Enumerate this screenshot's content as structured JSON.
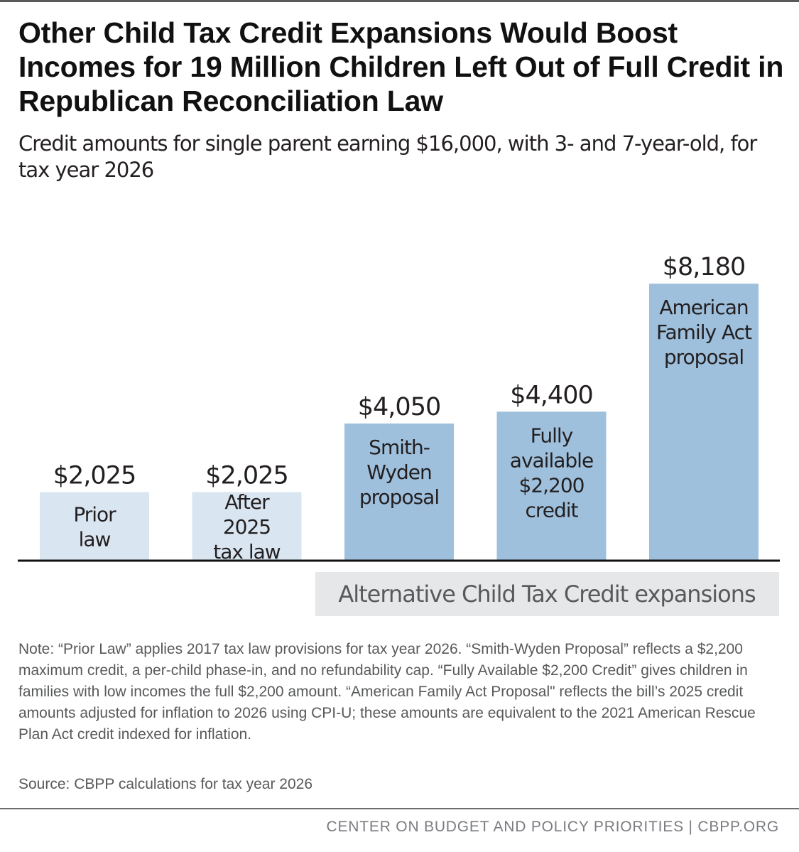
{
  "title": "Other Child Tax Credit Expansions Would Boost Incomes for 19 Million Children Left Out of Full Credit in Republican Reconciliation Law",
  "subtitle": "Credit amounts for single parent earning $16,000, with 3- and 7-year-old, for tax year 2026",
  "note": "Note: “Prior Law” applies 2017 tax law provisions for tax year 2026. “Smith-Wyden Proposal” reflects a $2,200 maximum credit, a per-child phase-in, and no refundability cap. “Fully Available $2,200 Credit” gives children in families with low incomes the full $2,200 amount. “American Family Act Proposal\" reflects the bill’s 2025 credit amounts adjusted for inflation to 2026 using CPI-U; these amounts are equivalent to the 2021 American Rescue Plan Act credit indexed for inflation.",
  "source": "Source: CBPP calculations for tax year 2026",
  "footer": "CENTER ON BUDGET AND POLICY PRIORITIES | CBPP.ORG",
  "colors": {
    "current_law_bar": "#d9e6f1",
    "expansion_bar": "#9ec0dc",
    "group_box": "#e6e7e8",
    "axis": "#111111",
    "text": "#231f20",
    "group_text": "#58595b"
  },
  "chart_data": {
    "type": "bar",
    "categories": [
      [
        "Prior",
        "law"
      ],
      [
        "After",
        "2025",
        "tax law"
      ],
      [
        "Smith-",
        "Wyden",
        "proposal"
      ],
      [
        "Fully",
        "available",
        "$2,200",
        "credit"
      ],
      [
        "American",
        "Family Act",
        "proposal"
      ]
    ],
    "values": [
      2025,
      2025,
      4050,
      4400,
      8180
    ],
    "value_labels": [
      "$2,025",
      "$2,025",
      "$4,050",
      "$4,400",
      "$8,180"
    ],
    "bar_group": [
      "current",
      "current",
      "expansion",
      "expansion",
      "expansion"
    ],
    "group_label": "Alternative Child Tax Credit expansions",
    "ylim": [
      0,
      8500
    ],
    "grid": false,
    "legend": "none"
  }
}
